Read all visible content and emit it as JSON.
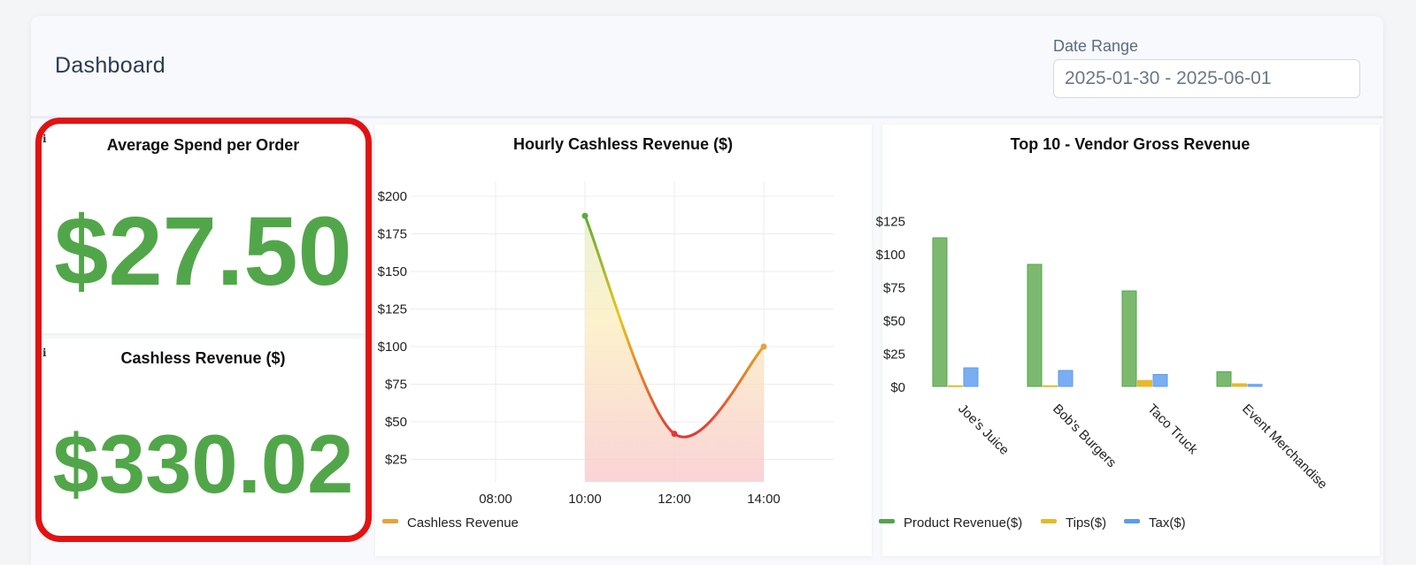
{
  "header": {
    "title": "Dashboard",
    "date_range_label": "Date Range",
    "date_range_value": "2025-01-30 - 2025-06-01"
  },
  "kpis": {
    "avg_spend": {
      "title": "Average Spend per Order",
      "value": "$27.50",
      "info_icon": "i"
    },
    "cashless_revenue": {
      "title": "Cashless Revenue ($)",
      "value": "$330.02",
      "info_icon": "i"
    }
  },
  "colors": {
    "kpi_green": "#52a64a",
    "highlight_red": "#e31212",
    "product": "#52a64a",
    "tips": "#e6b92a",
    "tax": "#5b9bf0",
    "line_start": "#5caa3c",
    "line_mid": "#e8c61e",
    "line_end": "#e03838",
    "cashless_legend": "#e8a23c"
  },
  "chart_data": [
    {
      "type": "line",
      "title": "Hourly Cashless Revenue ($)",
      "x": [
        "08:00",
        "10:00",
        "12:00",
        "14:00"
      ],
      "series": [
        {
          "name": "Cashless Revenue",
          "values": [
            null,
            187,
            42,
            100
          ]
        }
      ],
      "y_ticks": [
        "$25",
        "$50",
        "$75",
        "$100",
        "$125",
        "$150",
        "$175",
        "$200"
      ],
      "ylim": [
        10,
        210
      ],
      "area_fill": true,
      "grid": true,
      "legend": "bottom-left"
    },
    {
      "type": "bar",
      "title": "Top 10 - Vendor Gross Revenue",
      "categories": [
        "Joe's Juice",
        "Bob's Burgers",
        "Taco Truck",
        "Event Merchandise"
      ],
      "series": [
        {
          "name": "Product Revenue($)",
          "values": [
            112,
            92,
            72,
            11
          ]
        },
        {
          "name": "Tips($)",
          "values": [
            0.5,
            0.5,
            4.5,
            2
          ]
        },
        {
          "name": "Tax($)",
          "values": [
            14,
            12,
            9,
            1.5
          ]
        }
      ],
      "y_ticks": [
        "$0",
        "$25",
        "$50",
        "$75",
        "$100",
        "$125"
      ],
      "ylim": [
        0,
        140
      ],
      "grid": false,
      "legend": "bottom-left"
    }
  ]
}
